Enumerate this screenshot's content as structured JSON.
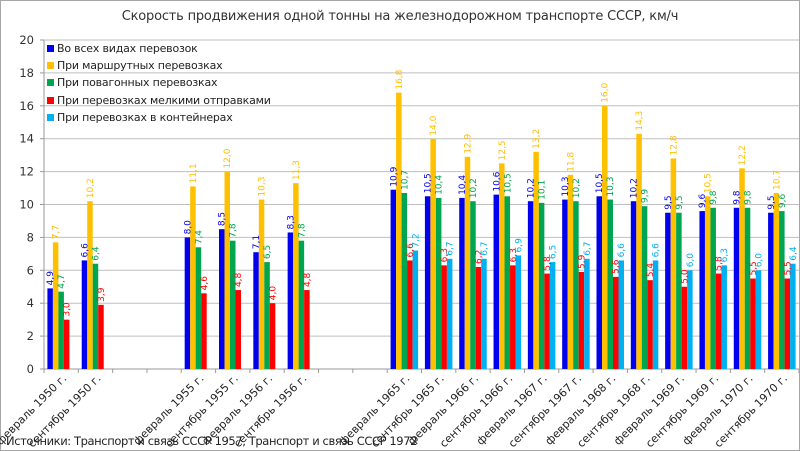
{
  "chart_data": {
    "type": "bar",
    "title": "Скорость продвижения одной тонны на железнодорожном транспорте СССР, км/ч",
    "xlabel": "",
    "ylabel": "",
    "ylim": [
      0,
      20
    ],
    "yticks": [
      0,
      2,
      4,
      6,
      8,
      10,
      12,
      14,
      16,
      18,
      20
    ],
    "grid": true,
    "legend_position": "top-left",
    "source": "Источники: Транспорт и связь СССР 1957, Транспорт и связь СССР 1972",
    "categories": [
      "февраль 1950 г.",
      "сентябрь 1950 г.",
      "",
      "",
      "февраль 1955 г.",
      "сентябрь 1955 г.",
      "февраль 1956 г.",
      "сентябрь 1956 г.",
      "",
      "",
      "февраль 1965 г.",
      "сентябрь 1965 г.",
      "февраль 1966 г.",
      "сентябрь 1966 г.",
      "февраль 1967 г.",
      "сентябрь 1967 г.",
      "февраль 1968 г.",
      "сентябрь 1968 г.",
      "февраль 1969 г.",
      "сентябрь 1969 г.",
      "февраль 1970 г.",
      "сентябрь 1970 г."
    ],
    "series": [
      {
        "name": "Во всех видах перевозок",
        "color": "#0000ee",
        "values": [
          4.9,
          6.6,
          null,
          null,
          8.0,
          8.5,
          7.1,
          8.3,
          null,
          null,
          10.9,
          10.5,
          10.4,
          10.6,
          10.2,
          10.3,
          10.5,
          10.2,
          9.5,
          9.6,
          9.8,
          9.5
        ]
      },
      {
        "name": "При маршрутных перевозках",
        "color": "#ffc000",
        "values": [
          7.7,
          10.2,
          null,
          null,
          11.1,
          12.0,
          10.3,
          11.3,
          null,
          null,
          16.8,
          14.0,
          12.9,
          12.5,
          13.2,
          11.8,
          16.0,
          14.3,
          12.8,
          10.5,
          12.2,
          10.7
        ]
      },
      {
        "name": "При повагонных  перевозках",
        "color": "#00a550",
        "values": [
          4.7,
          6.4,
          null,
          null,
          7.4,
          7.8,
          6.5,
          7.8,
          null,
          null,
          10.7,
          10.4,
          10.2,
          10.5,
          10.1,
          10.2,
          10.3,
          9.9,
          9.5,
          9.8,
          9.8,
          9.6
        ]
      },
      {
        "name": "При перевозках  мелкими отправками",
        "color": "#ff0000",
        "values": [
          3.0,
          3.9,
          null,
          null,
          4.6,
          4.8,
          4.0,
          4.8,
          null,
          null,
          6.6,
          6.3,
          6.2,
          6.3,
          5.8,
          5.9,
          5.6,
          5.4,
          5.0,
          5.8,
          5.5,
          5.5
        ]
      },
      {
        "name": "При перевозках  в контейнерах",
        "color": "#00b0f0",
        "values": [
          null,
          null,
          null,
          null,
          null,
          null,
          null,
          null,
          null,
          null,
          7.2,
          6.7,
          6.7,
          6.9,
          6.5,
          6.7,
          6.6,
          6.6,
          6.0,
          6.3,
          6.0,
          6.4
        ]
      }
    ]
  }
}
